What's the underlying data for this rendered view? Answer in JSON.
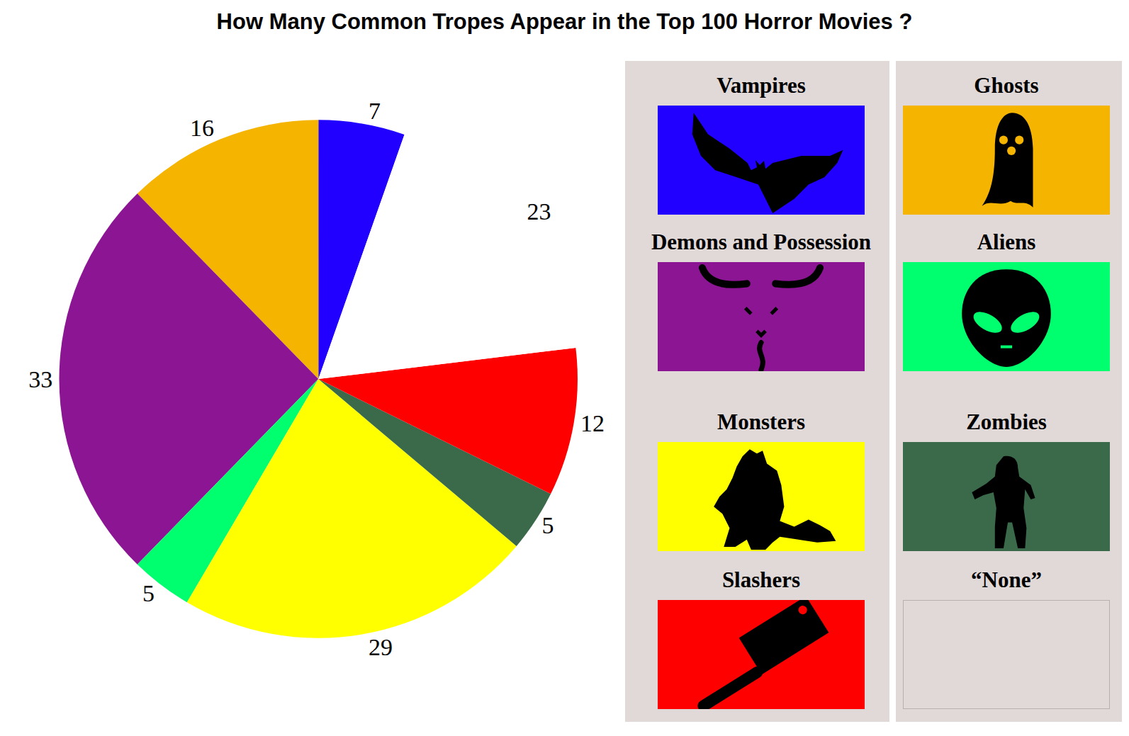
{
  "chart_data": {
    "type": "pie",
    "title": "How Many Common Tropes Appear in the Top 100 Horror Movies ?",
    "categories": [
      "Vampires",
      "Ghosts",
      "Demons and Possession",
      "Aliens",
      "Monsters",
      "Zombies",
      "Slashers",
      "“None”"
    ],
    "values": [
      7,
      16,
      33,
      5,
      29,
      5,
      12,
      23
    ],
    "colors": [
      "#2200ff",
      "#f5b400",
      "#8b1592",
      "#00ff6e",
      "#ffff00",
      "#3a6a4a",
      "#ff0000",
      "#ffffff"
    ],
    "data_labels": true,
    "legend": "right"
  }
}
